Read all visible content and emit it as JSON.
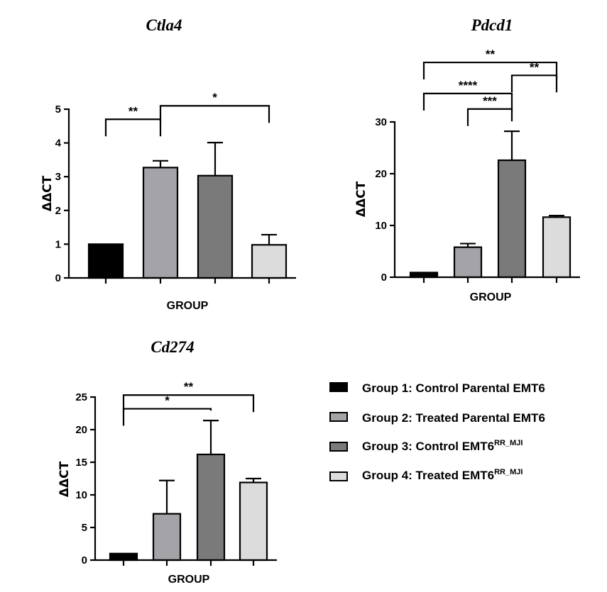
{
  "legend": [
    {
      "label": "Group 1: Control Parental EMT6",
      "sup": "",
      "color": "#000000"
    },
    {
      "label": "Group 2: Treated Parental EMT6",
      "sup": "",
      "color": "#a3a3a8"
    },
    {
      "label": "Group 3: Control EMT6",
      "sup": "RR_MJI",
      "color": "#7a7a7a"
    },
    {
      "label": "Group 4: Treated EMT6",
      "sup": "RR_MJI",
      "color": "#dcdcdc"
    }
  ],
  "chart_data": [
    {
      "type": "bar",
      "title": "Ctla4",
      "xlabel": "GROUP",
      "ylabel": "ΔΔCT",
      "categories": [
        "Group 1",
        "Group 2",
        "Group 3",
        "Group 4"
      ],
      "values": [
        1.0,
        3.27,
        3.03,
        0.98
      ],
      "errors": [
        0,
        0.2,
        0.98,
        0.3
      ],
      "ylim": [
        0,
        5
      ],
      "yticks": [
        0,
        1,
        2,
        3,
        4,
        5
      ],
      "ytick_labels": [
        "0",
        "1",
        "2",
        "3",
        "4",
        "5"
      ],
      "significance": [
        {
          "from": 0,
          "to": 1,
          "label": "**",
          "level": 4.7
        },
        {
          "from": 1,
          "to": 3,
          "label": "*",
          "level": 5.1
        }
      ]
    },
    {
      "type": "bar",
      "title": "Pdcd1",
      "xlabel": "GROUP",
      "ylabel": "ΔΔCT",
      "categories": [
        "Group 1",
        "Group 2",
        "Group 3",
        "Group 4"
      ],
      "values": [
        0.9,
        5.8,
        22.6,
        11.6
      ],
      "errors": [
        0,
        0.7,
        5.6,
        0.3
      ],
      "ylim": [
        0,
        30
      ],
      "yticks": [
        0,
        10,
        20,
        30
      ],
      "ytick_labels": [
        "0",
        "10",
        "20",
        "30"
      ],
      "significance": [
        {
          "from": 1,
          "to": 2,
          "label": "***",
          "level": 32.5
        },
        {
          "from": 0,
          "to": 2,
          "label": "****",
          "level": 35.5
        },
        {
          "from": 2,
          "to": 3,
          "label": "**",
          "level": 39.0
        },
        {
          "from": 0,
          "to": 3,
          "label": "**",
          "level": 41.5
        }
      ]
    },
    {
      "type": "bar",
      "title": "Cd274",
      "xlabel": "GROUP",
      "ylabel": "ΔΔCT",
      "categories": [
        "Group 1",
        "Group 2",
        "Group 3",
        "Group 4"
      ],
      "values": [
        1.0,
        7.1,
        16.2,
        11.9
      ],
      "errors": [
        0,
        5.1,
        5.2,
        0.6
      ],
      "ylim": [
        0,
        25
      ],
      "yticks": [
        0,
        5,
        10,
        15,
        20,
        25
      ],
      "ytick_labels": [
        "0",
        "5",
        "10",
        "15",
        "20",
        "25"
      ],
      "significance": [
        {
          "from": 0,
          "to": 2,
          "label": "*",
          "level": 23.2
        },
        {
          "from": 0,
          "to": 3,
          "label": "**",
          "level": 25.3
        }
      ]
    }
  ]
}
